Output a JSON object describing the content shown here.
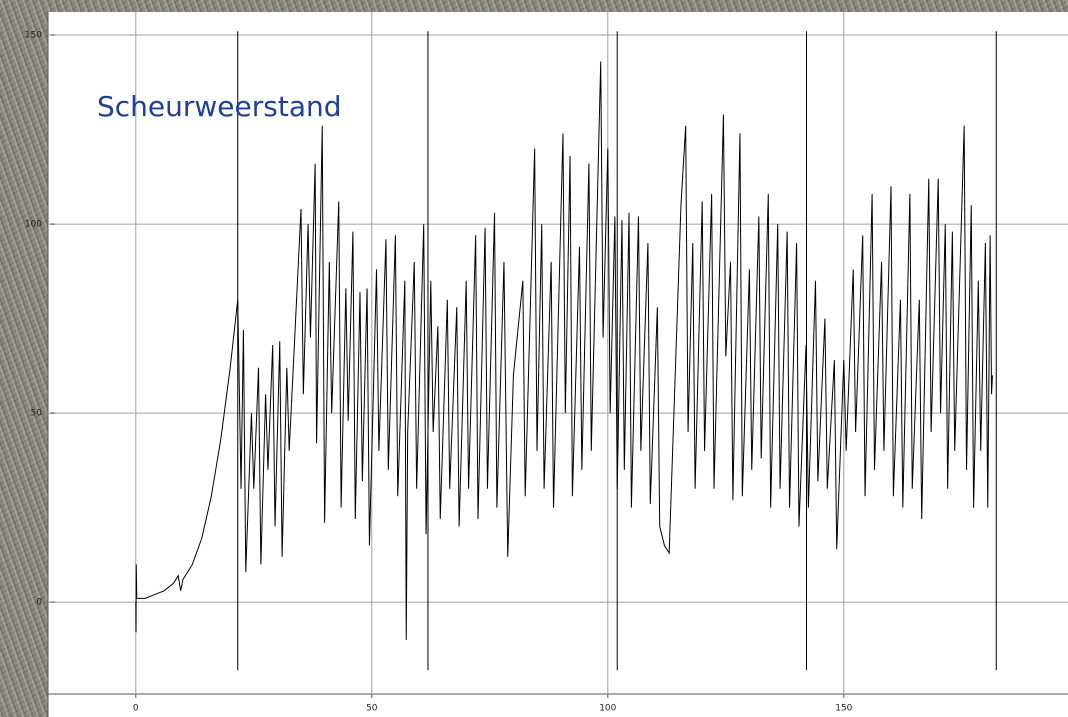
{
  "chart_data": {
    "type": "line",
    "title": "Scheurweerstand",
    "color": "#000000",
    "title_color": "#1f3f9a",
    "x": [
      0,
      0.05,
      0.1,
      0.2,
      2,
      4,
      6,
      8,
      9,
      9.5,
      10,
      12,
      14,
      16,
      18,
      20,
      21.6,
      22.3,
      22.8,
      23.3,
      24.5,
      25,
      26,
      26.5,
      27.5,
      28,
      29,
      29.5,
      30.5,
      31,
      32,
      32.5,
      35,
      35.5,
      36.5,
      37,
      38,
      38.3,
      39.5,
      40,
      41,
      41.5,
      43,
      43.5,
      44.5,
      45,
      46,
      46.5,
      47.5,
      48,
      49,
      49.5,
      51,
      51.5,
      53,
      53.5,
      55,
      55.5,
      57,
      57.3,
      57.6,
      59,
      59.5,
      61,
      61.5,
      62.5,
      63,
      64,
      64.5,
      66,
      66.5,
      68,
      68.5,
      70,
      70.5,
      72,
      72.5,
      74,
      74.5,
      76,
      76.5,
      78,
      78.8,
      80,
      82,
      82.5,
      84.5,
      85,
      86,
      86.5,
      88,
      88.5,
      90.5,
      91,
      92,
      92.5,
      94,
      94.5,
      96,
      96.5,
      98.5,
      99,
      100,
      100.5,
      101.5,
      102,
      103,
      103.5,
      104.5,
      105,
      106.5,
      107,
      108.5,
      109,
      110.5,
      111,
      112,
      113,
      115.5,
      116.5,
      117,
      118,
      118.5,
      120,
      120.5,
      122,
      122.5,
      124.5,
      125,
      126,
      126.5,
      128,
      128.5,
      130,
      130.5,
      132,
      132.5,
      134,
      134.5,
      136,
      136.5,
      138,
      138.5,
      140,
      140.5,
      142,
      142.5,
      144,
      144.5,
      146,
      146.5,
      148,
      148.5,
      150,
      150.5,
      152,
      152.5,
      154,
      154.5,
      156,
      156.5,
      158,
      158.5,
      160,
      160.5,
      162,
      162.5,
      164,
      164.5,
      166,
      166.5,
      168,
      168.5,
      170,
      170.5,
      171.5,
      172,
      173,
      173.5,
      175.5,
      176,
      177,
      177.5,
      178.5,
      179,
      180,
      180.5,
      181,
      181.3,
      181.5
    ],
    "values": [
      0,
      -8,
      10,
      1,
      1,
      2,
      3,
      5,
      7,
      3,
      6,
      10,
      17,
      28,
      43,
      62,
      80,
      30,
      72,
      8,
      50,
      30,
      62,
      10,
      55,
      35,
      68,
      20,
      69,
      12,
      62,
      40,
      104,
      55,
      100,
      70,
      116,
      42,
      126,
      21,
      90,
      50,
      106,
      25,
      83,
      48,
      98,
      22,
      82,
      32,
      83,
      15,
      88,
      40,
      96,
      35,
      97,
      28,
      85,
      -10,
      45,
      90,
      30,
      100,
      18,
      85,
      45,
      73,
      22,
      80,
      30,
      78,
      20,
      85,
      30,
      97,
      22,
      99,
      30,
      103,
      25,
      90,
      12,
      60,
      85,
      28,
      120,
      40,
      100,
      30,
      90,
      25,
      124,
      50,
      118,
      28,
      94,
      35,
      116,
      40,
      143,
      70,
      120,
      50,
      102,
      30,
      101,
      35,
      103,
      25,
      102,
      40,
      95,
      26,
      78,
      20,
      15,
      13,
      105,
      126,
      45,
      95,
      30,
      106,
      40,
      108,
      30,
      129,
      65,
      90,
      27,
      124,
      28,
      88,
      35,
      102,
      38,
      108,
      25,
      100,
      30,
      98,
      25,
      95,
      20,
      68,
      25,
      85,
      32,
      75,
      30,
      64,
      14,
      64,
      40,
      88,
      45,
      97,
      28,
      108,
      35,
      90,
      40,
      110,
      28,
      80,
      25,
      108,
      30,
      80,
      22,
      112,
      45,
      112,
      50,
      100,
      30,
      98,
      40,
      126,
      35,
      105,
      25,
      85,
      40,
      95,
      25,
      97,
      55,
      60
    ],
    "markers": [
      21.6,
      61.9,
      102,
      142.1,
      182.3
    ],
    "marker_range": [
      -18,
      151
    ],
    "xlim": [
      -18.6,
      197.5
    ],
    "ylim": [
      -24.3,
      156.1
    ],
    "xticks": [
      0,
      50,
      100,
      150
    ],
    "yticks": [
      0,
      50,
      100,
      150
    ],
    "grid": true
  }
}
